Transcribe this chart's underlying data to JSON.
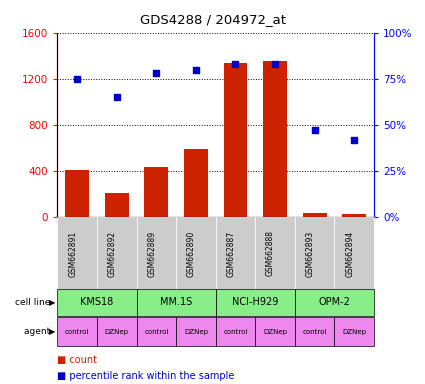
{
  "title": "GDS4288 / 204972_at",
  "samples": [
    "GSM662891",
    "GSM662892",
    "GSM662889",
    "GSM662890",
    "GSM662887",
    "GSM662888",
    "GSM662893",
    "GSM662894"
  ],
  "bar_values": [
    410,
    210,
    430,
    590,
    1340,
    1350,
    35,
    30
  ],
  "scatter_values": [
    75,
    65,
    78,
    80,
    83,
    83,
    47,
    42
  ],
  "cell_lines": [
    {
      "label": "KMS18",
      "span": [
        0,
        2
      ]
    },
    {
      "label": "MM.1S",
      "span": [
        2,
        4
      ]
    },
    {
      "label": "NCI-H929",
      "span": [
        4,
        6
      ]
    },
    {
      "label": "OPM-2",
      "span": [
        6,
        8
      ]
    }
  ],
  "agents": [
    "control",
    "DZNep",
    "control",
    "DZNep",
    "control",
    "DZNep",
    "control",
    "DZNep"
  ],
  "bar_color": "#cc2200",
  "scatter_color": "#0000cc",
  "cell_line_color": "#88ee88",
  "agent_color": "#ee88ee",
  "sample_bg_color": "#cccccc",
  "ylim_left": [
    0,
    1600
  ],
  "ylim_right": [
    0,
    100
  ],
  "yticks_left": [
    0,
    400,
    800,
    1200,
    1600
  ],
  "yticks_right": [
    0,
    25,
    50,
    75,
    100
  ],
  "ytick_labels_left": [
    "0",
    "400",
    "800",
    "1200",
    "1600"
  ],
  "ytick_labels_right": [
    "0%",
    "25%",
    "50%",
    "75%",
    "100%"
  ]
}
